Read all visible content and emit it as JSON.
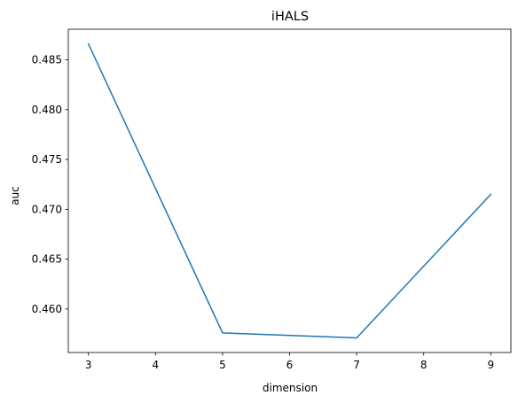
{
  "chart_data": {
    "type": "line",
    "title": "iHALS",
    "xlabel": "dimension",
    "ylabel": "auc",
    "x": [
      3,
      5,
      7,
      9
    ],
    "series": [
      {
        "values": [
          0.4866,
          0.4576,
          0.4571,
          0.4715
        ],
        "color": "#1f77b4"
      }
    ],
    "xticks": [
      3,
      4,
      5,
      6,
      7,
      8,
      9
    ],
    "yticks": [
      0.46,
      0.465,
      0.47,
      0.475,
      0.48,
      0.485
    ],
    "ytick_labels": [
      "0.460",
      "0.465",
      "0.470",
      "0.475",
      "0.480",
      "0.485"
    ],
    "xlim": [
      2.7,
      9.3
    ],
    "ylim": [
      0.45563,
      0.48807
    ],
    "grid": false,
    "legend": "none"
  }
}
